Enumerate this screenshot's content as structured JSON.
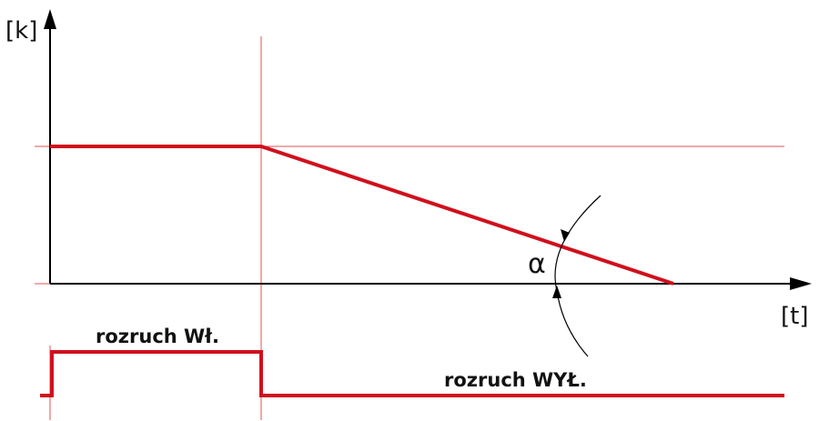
{
  "axes": {
    "y_label": "[k]",
    "x_label": "[t]"
  },
  "angle_label": "α",
  "signals": {
    "on_label": "rozruch Wł.",
    "off_label": "rozruch WYŁ."
  }
}
